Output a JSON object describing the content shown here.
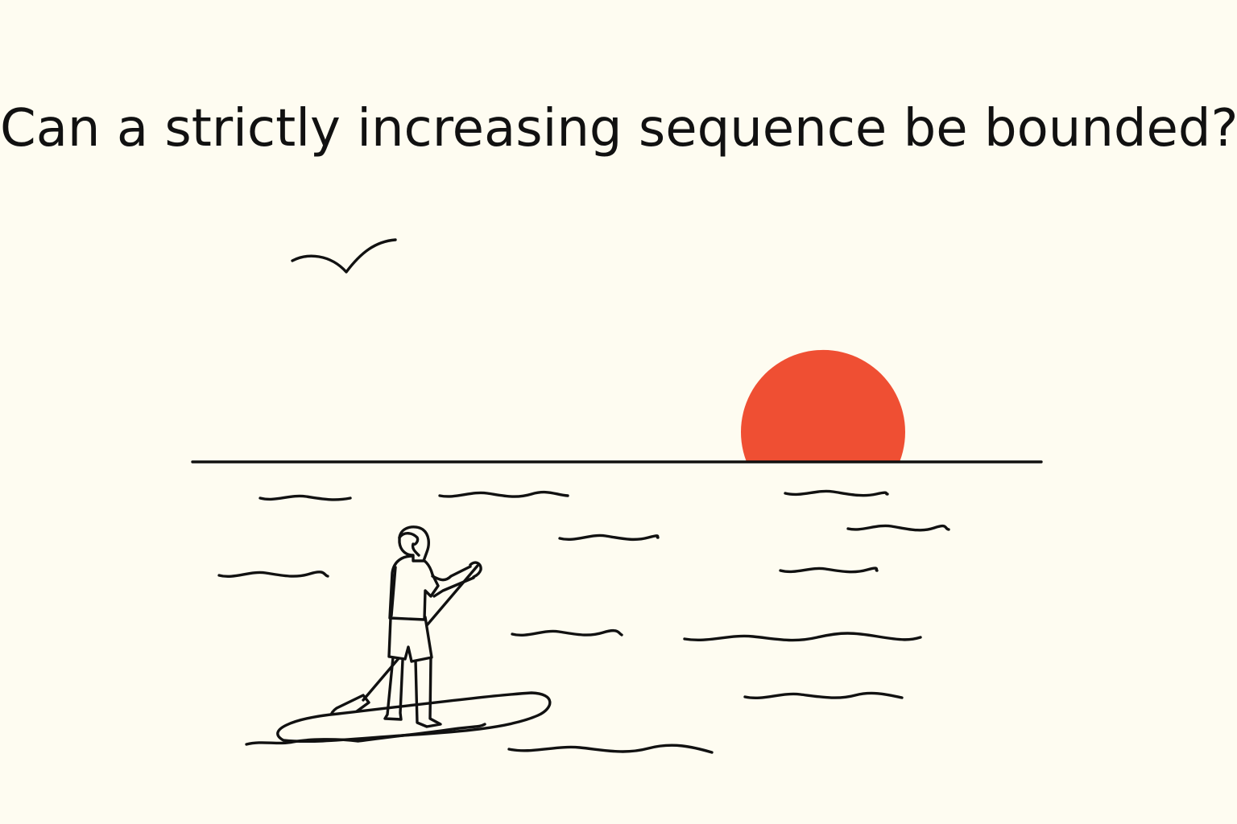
{
  "headline": {
    "text": "Can a strictly increasing sequence be bounded?"
  },
  "colors": {
    "background": "#FEFCF1",
    "ink": "#111111",
    "sun": "#EF4F33"
  },
  "illustration": {
    "elements": [
      "bird-icon",
      "sun-icon",
      "horizon-line",
      "water-waves",
      "paddleboarder-figure"
    ]
  }
}
